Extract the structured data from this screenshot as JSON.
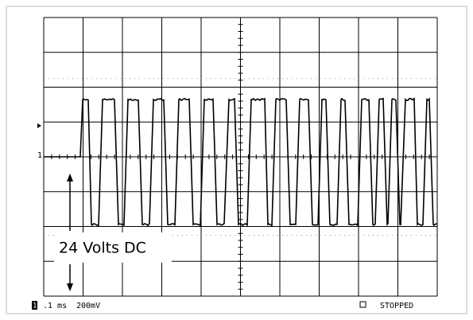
{
  "screen": {
    "annotation": "24 Volts DC",
    "channel_marker": "1",
    "status": {
      "channel": "1",
      "timebase": ".1 ms",
      "volts": "200mV",
      "state": "STOPPED"
    }
  }
}
